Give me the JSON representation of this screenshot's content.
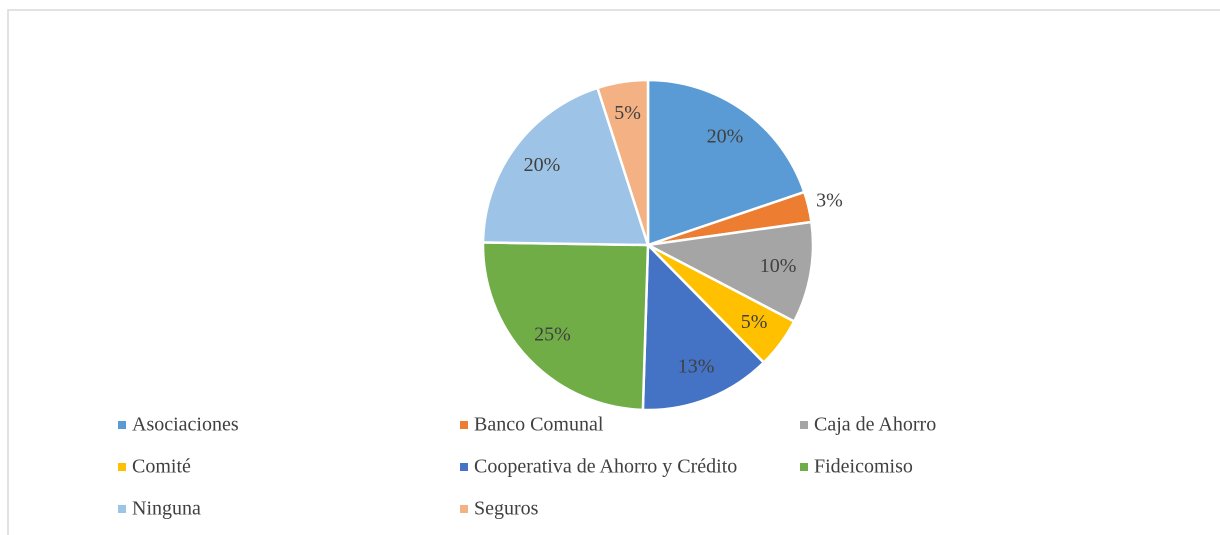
{
  "chart_data": {
    "type": "pie",
    "categories": [
      "Asociaciones",
      "Banco Comunal",
      "Caja de Ahorro",
      "Comité",
      "Cooperativa de Ahorro y Crédito",
      "Fideicomiso",
      "Ninguna",
      "Seguros"
    ],
    "values": [
      20,
      3,
      10,
      5,
      13,
      25,
      20,
      5
    ],
    "value_labels": [
      "20%",
      "3%",
      "10%",
      "5%",
      "13%",
      "25%",
      "20%",
      "5%"
    ],
    "colors": [
      "#5b9bd5",
      "#ed7d31",
      "#a5a5a5",
      "#ffc000",
      "#4472c4",
      "#70ad47",
      "#9dc3e6",
      "#f4b183"
    ],
    "legend": "bottom"
  }
}
